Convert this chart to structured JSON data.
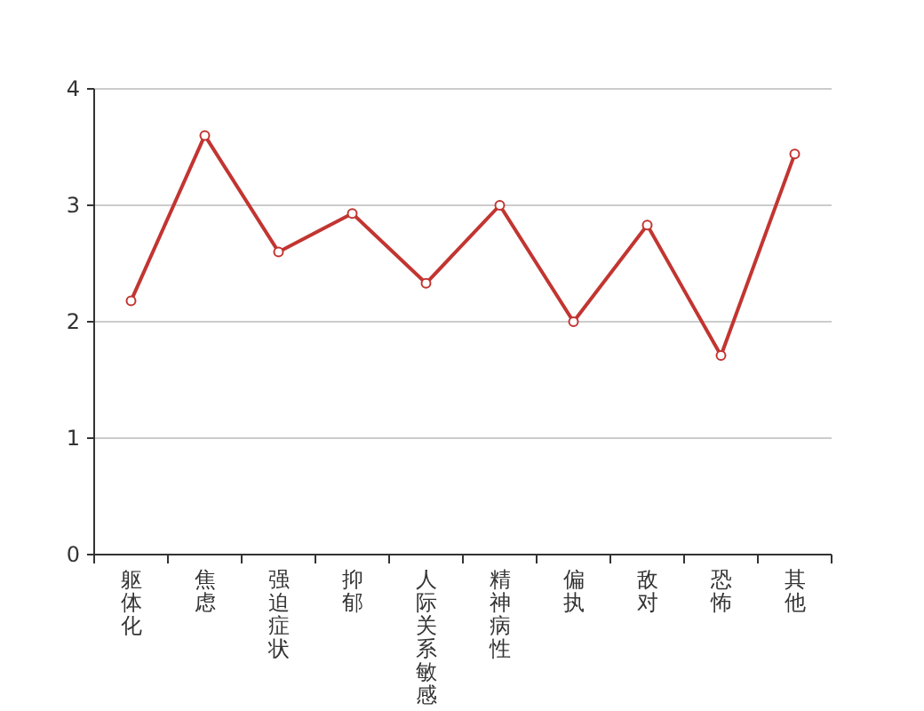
{
  "chart_data": {
    "type": "line",
    "categories": [
      "躯体化",
      "焦虑",
      "强迫症状",
      "抑郁",
      "人际关系敏感",
      "精神病性",
      "偏执",
      "敌对",
      "恐怖",
      "其他"
    ],
    "series": [
      {
        "color": "#c23531",
        "values": [
          2.18,
          3.6,
          2.6,
          2.93,
          2.33,
          3.0,
          2.0,
          2.83,
          1.71,
          3.44
        ]
      }
    ],
    "ylim": [
      0,
      4
    ],
    "yticks": [
      0,
      1,
      2,
      3,
      4
    ],
    "grid": "y",
    "marker": "circle",
    "line_style": "solid"
  }
}
